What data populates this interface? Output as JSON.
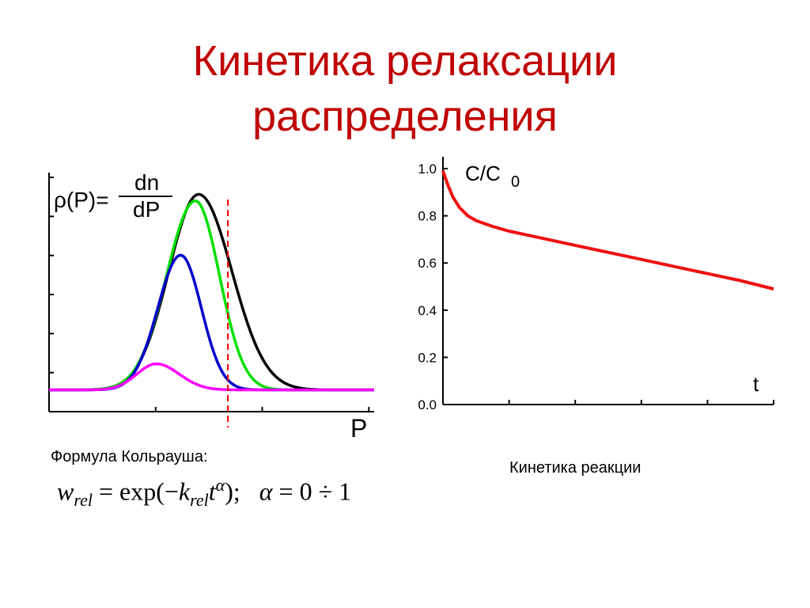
{
  "slide": {
    "title_line1": "Кинетика релаксации",
    "title_line2": "распределения"
  },
  "left_caption": "Формула Кольрауша:",
  "right_caption": "Кинетика реакции",
  "formula": {
    "w": "w",
    "w_sub": "rel",
    "eq": " = exp(−",
    "k": "k",
    "k_sub": "rel",
    "t": "t",
    "t_sup": "α",
    "close": ");",
    "alpha": "α",
    "alpha_eq": " =  0 ÷ 1"
  },
  "chart_data": [
    {
      "type": "line",
      "title": "",
      "ylabel_rho": "ρ(P)=",
      "ylabel_num": "dn",
      "ylabel_den": "dP",
      "xlabel": "P",
      "grid": false,
      "legend": "none",
      "x_range": [
        0,
        10
      ],
      "y_range": [
        0,
        1.1
      ],
      "series": [
        {
          "color": "#000000",
          "peak_x": 4.6,
          "peak_y": 1.0,
          "width_left": 1.3,
          "width_right": 1.45
        },
        {
          "color": "#00e000",
          "peak_x": 4.5,
          "peak_y": 0.97,
          "width_left": 1.25,
          "width_right": 1.05
        },
        {
          "color": "#0000cc",
          "peak_x": 4.05,
          "peak_y": 0.72,
          "width_left": 1.0,
          "width_right": 0.9
        },
        {
          "color": "#ff00ff",
          "peak_x": 3.3,
          "peak_y": 0.22,
          "width_left": 0.85,
          "width_right": 1.0
        }
      ],
      "baseline_y": 0.1,
      "marker_line": {
        "x": 5.5,
        "color": "#ff0000",
        "style": "dashed"
      },
      "y_ticks_count": 6,
      "x_ticks_count": 3
    },
    {
      "type": "line",
      "title": "",
      "ylabel": "C/C",
      "ylabel_sub": "0",
      "xlabel": "t",
      "grid": false,
      "legend": "none",
      "x_range": [
        0,
        10
      ],
      "y_range": [
        0,
        1.0
      ],
      "y_ticks": [
        "0.0",
        "0.2",
        "0.4",
        "0.6",
        "0.8",
        "1.0"
      ],
      "y_tick_values": [
        0,
        0.2,
        0.4,
        0.6,
        0.8,
        1.0
      ],
      "series": [
        {
          "color": "#ee1111",
          "x": [
            0,
            0.15,
            0.3,
            0.5,
            0.75,
            1.0,
            1.5,
            2.0,
            3.0,
            4.0,
            5.0,
            6.0,
            7.0,
            8.0,
            9.0,
            10.0
          ],
          "y": [
            0.99,
            0.93,
            0.88,
            0.835,
            0.8,
            0.78,
            0.755,
            0.735,
            0.705,
            0.675,
            0.645,
            0.615,
            0.585,
            0.555,
            0.525,
            0.49
          ]
        }
      ],
      "x_ticks_count": 5
    }
  ]
}
